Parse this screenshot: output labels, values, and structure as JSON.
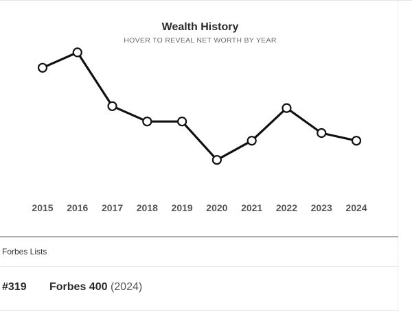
{
  "chart_data": {
    "type": "line",
    "title": "Wealth History",
    "subtitle": "HOVER TO REVEAL NET WORTH BY YEAR",
    "x": [
      "2015",
      "2016",
      "2017",
      "2018",
      "2019",
      "2020",
      "2021",
      "2022",
      "2023",
      "2024"
    ],
    "series": [
      {
        "values": [
          79,
          87,
          59,
          51,
          51,
          31,
          41,
          58,
          45,
          41
        ]
      }
    ],
    "ylim": [
      0,
      100
    ],
    "grid": false,
    "legend": "none",
    "colors": {
      "line": "#111111",
      "marker_fill": "#ffffff",
      "tick_label": "#555555"
    }
  },
  "forbes_lists": {
    "heading": "Forbes Lists",
    "items": [
      {
        "rank": "#319",
        "name": "Forbes 400",
        "year": "(2024)"
      }
    ]
  }
}
